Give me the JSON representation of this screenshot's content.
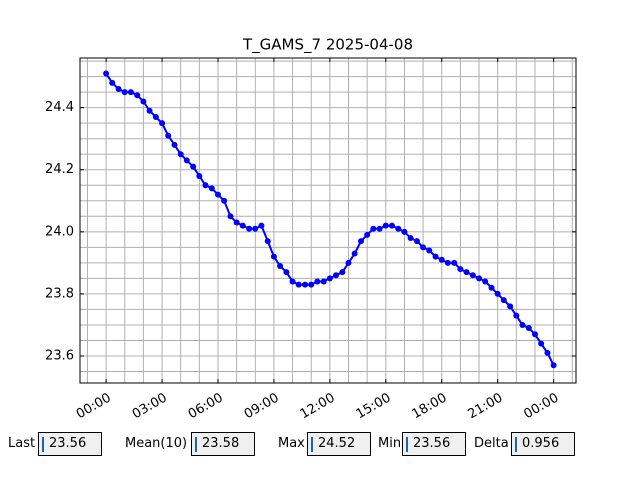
{
  "chart_data": {
    "type": "line",
    "title": "T_GAMS_7 2025-04-08",
    "x": [
      0,
      0.33,
      0.67,
      1,
      1.33,
      1.67,
      2,
      2.33,
      2.67,
      3,
      3.33,
      3.67,
      4,
      4.33,
      4.67,
      5,
      5.33,
      5.67,
      6,
      6.33,
      6.67,
      7,
      7.33,
      7.67,
      8,
      8.33,
      8.67,
      9,
      9.33,
      9.67,
      10,
      10.33,
      10.67,
      11,
      11.33,
      11.67,
      12,
      12.33,
      12.67,
      13,
      13.33,
      13.67,
      14,
      14.33,
      14.67,
      15,
      15.33,
      15.67,
      16,
      16.33,
      16.67,
      17,
      17.33,
      17.67,
      18,
      18.33,
      18.67,
      19,
      19.33,
      19.67,
      20,
      20.33,
      20.67,
      21,
      21.33,
      21.67,
      22,
      22.33,
      22.67,
      23,
      23.33,
      23.67,
      24
    ],
    "series": [
      {
        "color": "#0000ff",
        "values": [
          24.51,
          24.48,
          24.46,
          24.45,
          24.45,
          24.44,
          24.42,
          24.39,
          24.37,
          24.35,
          24.31,
          24.28,
          24.25,
          24.23,
          24.21,
          24.18,
          24.15,
          24.14,
          24.12,
          24.1,
          24.05,
          24.03,
          24.02,
          24.01,
          24.01,
          24.02,
          23.97,
          23.92,
          23.89,
          23.87,
          23.84,
          23.83,
          23.83,
          23.83,
          23.84,
          23.84,
          23.85,
          23.86,
          23.87,
          23.9,
          23.93,
          23.97,
          23.99,
          24.01,
          24.01,
          24.02,
          24.02,
          24.01,
          24.0,
          23.98,
          23.97,
          23.95,
          23.94,
          23.92,
          23.91,
          23.9,
          23.9,
          23.88,
          23.87,
          23.86,
          23.85,
          23.84,
          23.82,
          23.8,
          23.78,
          23.76,
          23.73,
          23.7,
          23.69,
          23.67,
          23.64,
          23.61,
          23.57
        ]
      }
    ],
    "xlim": [
      -1.4,
      25.2
    ],
    "xticks": [
      {
        "value": 0,
        "label": "00:00"
      },
      {
        "value": 3,
        "label": "03:00"
      },
      {
        "value": 6,
        "label": "06:00"
      },
      {
        "value": 9,
        "label": "09:00"
      },
      {
        "value": 12,
        "label": "12:00"
      },
      {
        "value": 15,
        "label": "15:00"
      },
      {
        "value": 18,
        "label": "18:00"
      },
      {
        "value": 21,
        "label": "21:00"
      },
      {
        "value": 24,
        "label": "00:00"
      }
    ],
    "xminorticks": [
      -1,
      1,
      2,
      4,
      5,
      7,
      8,
      10,
      11,
      13,
      14,
      16,
      17,
      19,
      20,
      22,
      23,
      25
    ],
    "ylim": [
      23.513,
      24.56
    ],
    "yticks": [
      23.6,
      23.8,
      {
        "value": 24.0,
        "label": "24.0"
      },
      24.2,
      24.4
    ],
    "yminorticks": [
      23.55,
      23.65,
      23.7,
      23.75,
      23.85,
      23.9,
      23.95,
      24.05,
      24.1,
      24.15,
      24.25,
      24.3,
      24.35,
      24.45,
      24.5,
      24.55
    ],
    "grid": true
  },
  "stats": [
    {
      "label": "Last",
      "value": 23.56
    },
    {
      "label": "Mean(10)",
      "value": 23.58
    },
    {
      "label": "Max",
      "value": 24.52
    },
    {
      "label": "Min",
      "value": 23.56
    },
    {
      "label": "Delta",
      "value": 0.956
    }
  ]
}
